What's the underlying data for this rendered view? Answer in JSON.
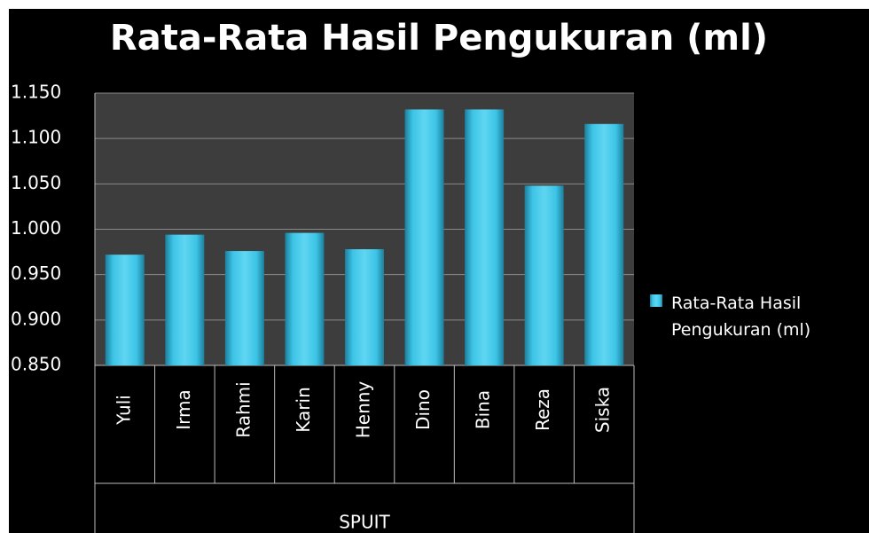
{
  "chart_data": {
    "type": "bar",
    "title": "Rata-Rata Hasil Pengukuran (ml)",
    "x_label": "SPUIT",
    "categories": [
      "Yuli",
      "Irma",
      "Rahmi",
      "Karin",
      "Henny",
      "Dino",
      "Bina",
      "Reza",
      "Siska"
    ],
    "series": [
      {
        "name": "Rata-Rata Hasil Pengukuran (ml)",
        "color": "#3cc4e6",
        "values": [
          0.972,
          0.994,
          0.976,
          0.996,
          0.978,
          1.132,
          1.132,
          1.048,
          1.116
        ]
      }
    ],
    "ylim": [
      0.85,
      1.15
    ],
    "yticks": [
      {
        "value": 0.85,
        "label": "0.850"
      },
      {
        "value": 0.9,
        "label": "0.900"
      },
      {
        "value": 0.95,
        "label": "0.950"
      },
      {
        "value": 1.0,
        "label": "1.000"
      },
      {
        "value": 1.05,
        "label": "1.050"
      },
      {
        "value": 1.1,
        "label": "1.100"
      },
      {
        "value": 1.15,
        "label": "1.150"
      }
    ],
    "grid": true,
    "legend": "right"
  }
}
